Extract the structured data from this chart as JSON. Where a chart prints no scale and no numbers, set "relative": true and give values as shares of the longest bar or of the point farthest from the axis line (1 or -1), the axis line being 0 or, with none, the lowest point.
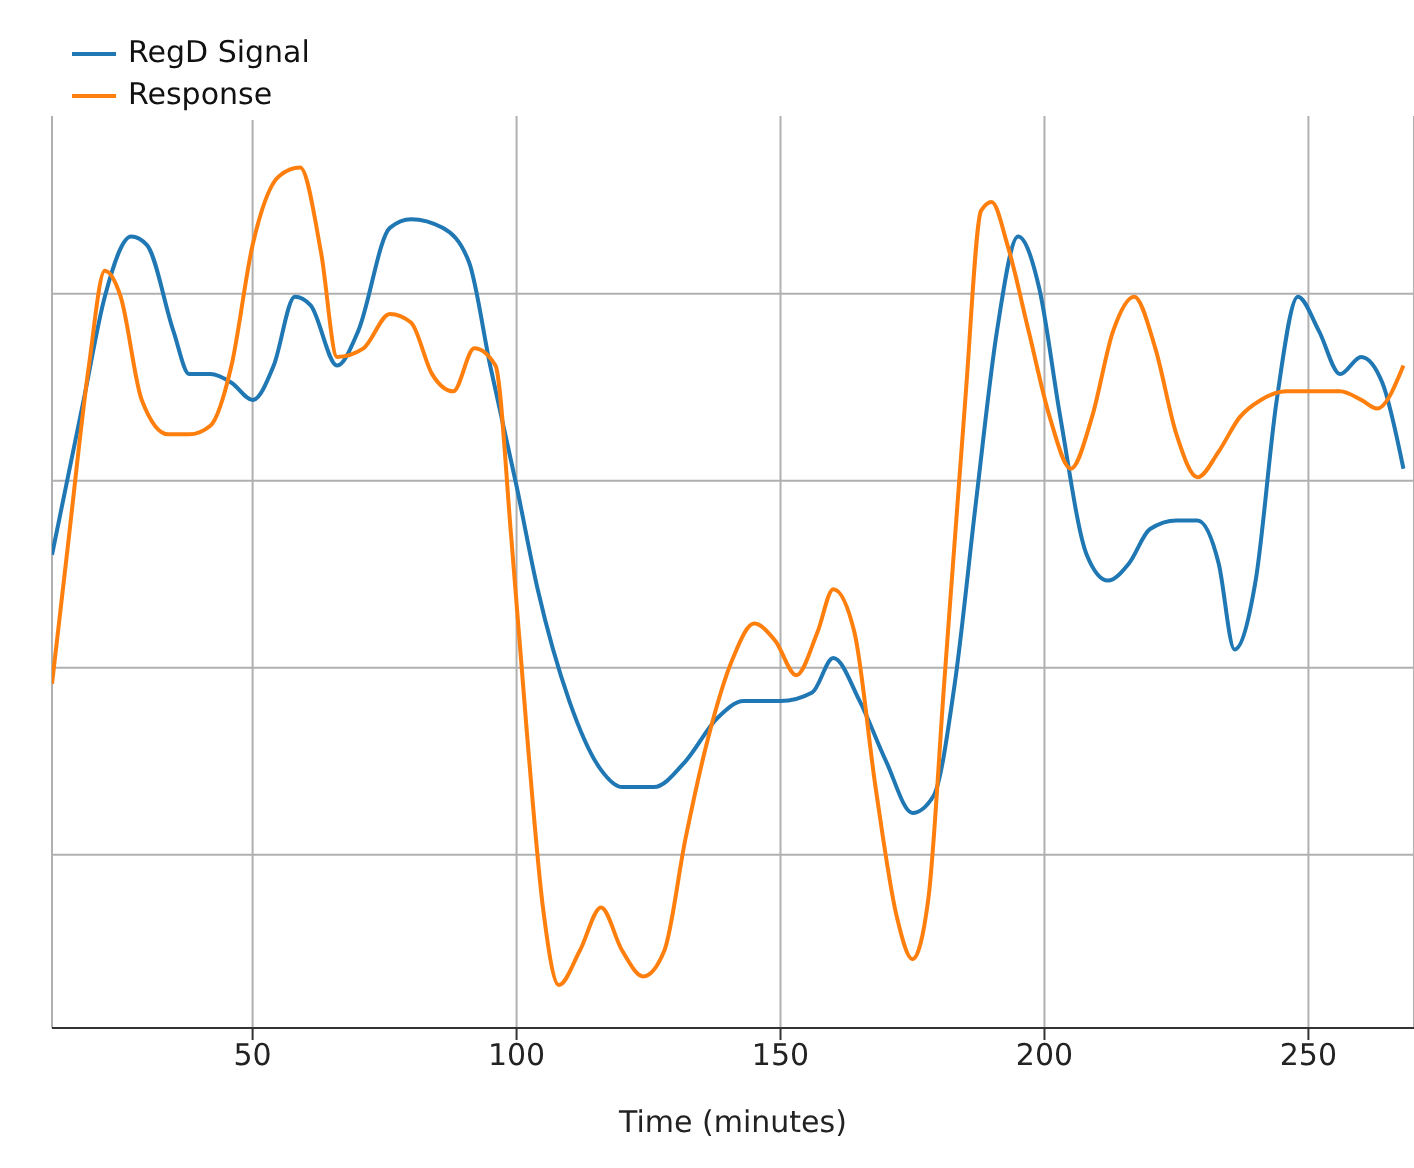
{
  "chart_data": {
    "type": "line",
    "xlabel": "Time (minutes)",
    "relative": true,
    "xlim": [
      12,
      270
    ],
    "xticks": [
      50,
      100,
      150,
      200,
      250
    ],
    "grid": true,
    "legend": "top left",
    "line_style": "solid",
    "series": [
      {
        "name": "RegD Signal",
        "color": "#1f77b4",
        "x": [
          12,
          18,
          22,
          27,
          30,
          35,
          38,
          42,
          46,
          50,
          54,
          58,
          61,
          66,
          70,
          76,
          80,
          86,
          91,
          95,
          100,
          104,
          110,
          116,
          120,
          126,
          132,
          138,
          143,
          150,
          156,
          160,
          165,
          170,
          175,
          179,
          183,
          187,
          191,
          195,
          199,
          203,
          208,
          212,
          216,
          220,
          225,
          229,
          233,
          236,
          240,
          244,
          248,
          252,
          256,
          260,
          264,
          268
        ],
        "values": [
          0.55,
          0.73,
          0.85,
          0.92,
          0.91,
          0.81,
          0.76,
          0.76,
          0.75,
          0.73,
          0.77,
          0.85,
          0.84,
          0.77,
          0.81,
          0.93,
          0.94,
          0.93,
          0.89,
          0.77,
          0.63,
          0.51,
          0.38,
          0.3,
          0.28,
          0.28,
          0.31,
          0.36,
          0.38,
          0.38,
          0.39,
          0.43,
          0.38,
          0.31,
          0.25,
          0.27,
          0.4,
          0.61,
          0.81,
          0.92,
          0.86,
          0.71,
          0.55,
          0.52,
          0.54,
          0.58,
          0.59,
          0.59,
          0.54,
          0.44,
          0.52,
          0.73,
          0.85,
          0.81,
          0.76,
          0.78,
          0.75,
          0.65
        ]
      },
      {
        "name": "Response",
        "color": "#ff7f0e",
        "x": [
          12,
          15,
          19,
          22,
          25,
          29,
          34,
          38,
          42,
          46,
          50,
          55,
          59,
          63,
          66,
          71,
          76,
          80,
          84,
          88,
          92,
          96,
          99,
          102,
          105,
          108,
          112,
          116,
          120,
          124,
          128,
          132,
          136,
          141,
          145,
          149,
          153,
          157,
          160,
          164,
          168,
          172,
          175,
          178,
          181,
          185,
          188,
          190,
          193,
          197,
          201,
          205,
          209,
          213,
          217,
          221,
          225,
          229,
          233,
          237,
          241,
          246,
          251,
          256,
          260,
          263,
          268
        ],
        "values": [
          0.4,
          0.56,
          0.77,
          0.88,
          0.85,
          0.73,
          0.69,
          0.69,
          0.7,
          0.77,
          0.91,
          0.99,
          1.0,
          0.9,
          0.78,
          0.79,
          0.83,
          0.82,
          0.76,
          0.74,
          0.79,
          0.77,
          0.57,
          0.34,
          0.14,
          0.05,
          0.09,
          0.14,
          0.09,
          0.06,
          0.09,
          0.22,
          0.33,
          0.43,
          0.47,
          0.45,
          0.41,
          0.46,
          0.51,
          0.46,
          0.28,
          0.13,
          0.08,
          0.15,
          0.4,
          0.73,
          0.95,
          0.96,
          0.91,
          0.81,
          0.71,
          0.65,
          0.71,
          0.81,
          0.85,
          0.79,
          0.69,
          0.64,
          0.67,
          0.71,
          0.73,
          0.74,
          0.74,
          0.74,
          0.73,
          0.72,
          0.77
        ]
      }
    ]
  }
}
